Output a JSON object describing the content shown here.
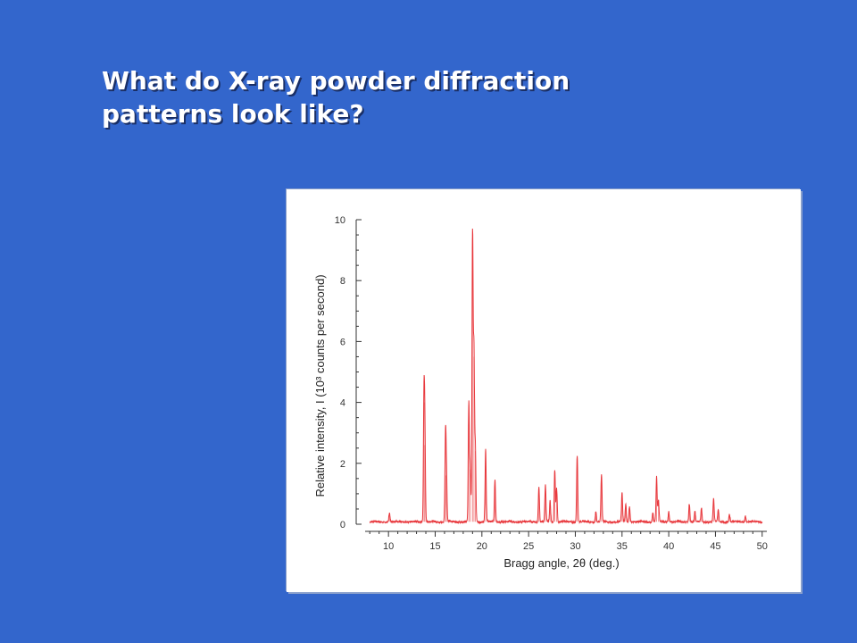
{
  "slide": {
    "title_line1": "What do X-ray powder diffraction",
    "title_line2": "patterns look like?"
  },
  "chart_data": {
    "type": "line",
    "xlabel": "Bragg angle, 2θ (deg.)",
    "ylabel": "Relative intensity, I (10³ counts per second)",
    "xlim": [
      7.5,
      50.5
    ],
    "ylim": [
      0,
      10
    ],
    "xticks": [
      10,
      15,
      20,
      25,
      30,
      35,
      40,
      45,
      50
    ],
    "yticks": [
      0,
      2,
      4,
      6,
      8,
      10
    ],
    "line_color": "#e8383d",
    "baseline": 0.08,
    "grid": false,
    "peaks": [
      {
        "x": 10.1,
        "y": 0.3
      },
      {
        "x": 13.8,
        "y": 4.0
      },
      {
        "x": 13.9,
        "y": 2.6
      },
      {
        "x": 16.1,
        "y": 2.7
      },
      {
        "x": 16.2,
        "y": 1.6
      },
      {
        "x": 18.6,
        "y": 3.9
      },
      {
        "x": 18.75,
        "y": 1.8
      },
      {
        "x": 19.0,
        "y": 9.4
      },
      {
        "x": 19.15,
        "y": 5.5
      },
      {
        "x": 19.3,
        "y": 2.4
      },
      {
        "x": 20.4,
        "y": 2.4
      },
      {
        "x": 21.4,
        "y": 1.4
      },
      {
        "x": 26.1,
        "y": 1.15
      },
      {
        "x": 26.8,
        "y": 1.2
      },
      {
        "x": 27.3,
        "y": 0.7
      },
      {
        "x": 27.8,
        "y": 1.7
      },
      {
        "x": 28.0,
        "y": 1.1
      },
      {
        "x": 30.2,
        "y": 2.2
      },
      {
        "x": 32.2,
        "y": 0.35
      },
      {
        "x": 32.8,
        "y": 1.55
      },
      {
        "x": 35.0,
        "y": 0.95
      },
      {
        "x": 35.4,
        "y": 0.6
      },
      {
        "x": 35.8,
        "y": 0.5
      },
      {
        "x": 38.3,
        "y": 0.3
      },
      {
        "x": 38.7,
        "y": 1.5
      },
      {
        "x": 38.9,
        "y": 0.7
      },
      {
        "x": 40.0,
        "y": 0.35
      },
      {
        "x": 42.2,
        "y": 0.6
      },
      {
        "x": 42.8,
        "y": 0.35
      },
      {
        "x": 43.5,
        "y": 0.45
      },
      {
        "x": 44.8,
        "y": 0.75
      },
      {
        "x": 45.3,
        "y": 0.4
      },
      {
        "x": 46.5,
        "y": 0.25
      },
      {
        "x": 48.2,
        "y": 0.2
      }
    ]
  }
}
